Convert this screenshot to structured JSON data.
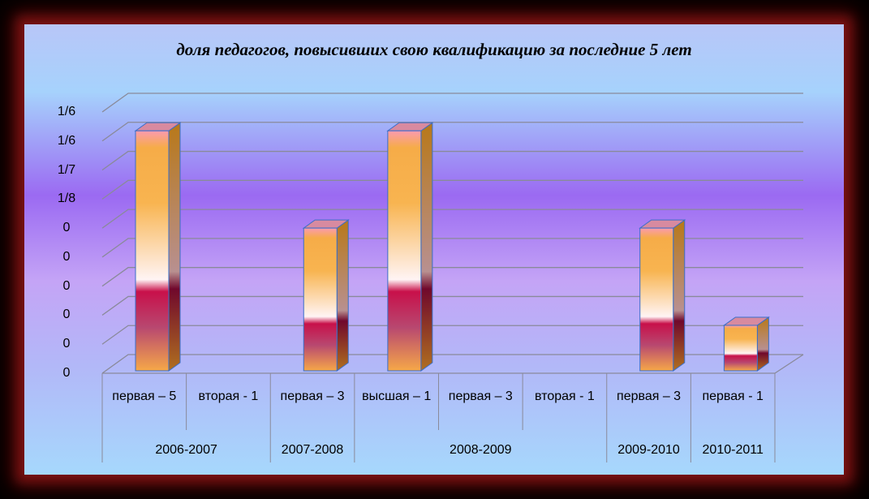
{
  "chart_data": {
    "type": "bar3d",
    "title": "доля педагогов, повысивших свою квалификацию за последние 5 лет",
    "groups": [
      {
        "name": "2006-2007",
        "categories": [
          "первая – 5",
          "вторая - 1"
        ]
      },
      {
        "name": "2007-2008",
        "categories": [
          "первая – 3"
        ]
      },
      {
        "name": "2008-2009",
        "categories": [
          "высшая – 1",
          "первая – 3",
          "вторая - 1"
        ]
      },
      {
        "name": "2009-2010",
        "categories": [
          "первая – 3"
        ]
      },
      {
        "name": "2010-2011",
        "categories": [
          "первая - 1"
        ]
      }
    ],
    "values": [
      0.167,
      null,
      0.1,
      0.167,
      null,
      null,
      0.1,
      0.033
    ],
    "ylim": [
      0,
      0.18
    ],
    "yticks": [
      0,
      {
        "value": 0.02,
        "label": "0"
      },
      {
        "value": 0.04,
        "label": "0"
      },
      {
        "value": 0.06,
        "label": "0"
      },
      {
        "value": 0.08,
        "label": "0"
      },
      {
        "value": 0.1,
        "label": "0"
      },
      {
        "value": 0.12,
        "label": "1/8"
      },
      {
        "value": 0.14,
        "label": "1/7"
      },
      {
        "value": 0.16,
        "label": "1/6"
      },
      {
        "value": 0.18,
        "label": "1/6"
      }
    ],
    "grid": true
  }
}
